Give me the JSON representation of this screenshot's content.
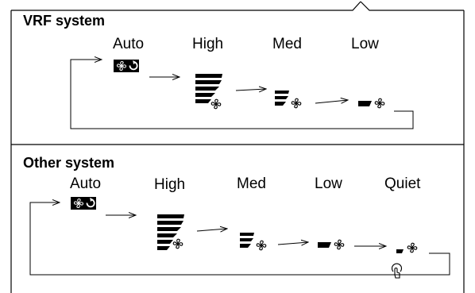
{
  "vrf": {
    "title": "VRF system",
    "modes": [
      {
        "label": "Auto",
        "icon": "fan-auto-icon"
      },
      {
        "label": "High",
        "icon": "fan-speed-high-icon",
        "bars": 5
      },
      {
        "label": "Med",
        "icon": "fan-speed-med-icon",
        "bars": 3
      },
      {
        "label": "Low",
        "icon": "fan-speed-low-icon",
        "bars": 1
      }
    ]
  },
  "other": {
    "title": "Other system",
    "modes": [
      {
        "label": "Auto",
        "icon": "fan-auto-icon"
      },
      {
        "label": "High",
        "icon": "fan-speed-high-icon",
        "bars": 5
      },
      {
        "label": "Med",
        "icon": "fan-speed-med-icon",
        "bars": 3
      },
      {
        "label": "Low",
        "icon": "fan-speed-low-icon",
        "bars": 1
      },
      {
        "label": "Quiet",
        "icon": "fan-quiet-icon",
        "bars": 1
      }
    ]
  },
  "colors": {
    "ink": "#000000",
    "background": "#ffffff"
  }
}
